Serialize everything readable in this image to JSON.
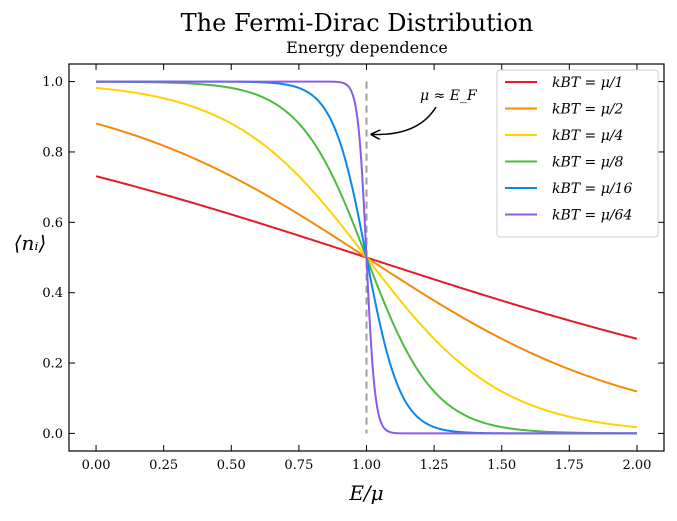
{
  "chart_data": {
    "type": "line",
    "title": "The Fermi-Dirac Distribution",
    "subtitle": "Energy dependence",
    "xlabel": "E/μ",
    "ylabel": "⟨nᵢ⟩",
    "xlim": [
      -0.1,
      2.1
    ],
    "ylim": [
      -0.05,
      1.05
    ],
    "x_ticks": [
      0.0,
      0.25,
      0.5,
      0.75,
      1.0,
      1.25,
      1.5,
      1.75,
      2.0
    ],
    "x_tick_labels": [
      "0.00",
      "0.25",
      "0.50",
      "0.75",
      "1.00",
      "1.25",
      "1.50",
      "1.75",
      "2.00"
    ],
    "y_ticks": [
      0.0,
      0.2,
      0.4,
      0.6,
      0.8,
      1.0
    ],
    "y_tick_labels": [
      "0.0",
      "0.2",
      "0.4",
      "0.6",
      "0.8",
      "1.0"
    ],
    "grid": false,
    "legend_position": "top-right",
    "x_range": [
      0,
      2
    ],
    "series": [
      {
        "name": "kBT = μ/1",
        "kT": 1,
        "color": "#e41a2c",
        "y_at_x0": 0.731,
        "y_at_x1": 0.5,
        "y_at_x2": 0.269
      },
      {
        "name": "kBT = μ/2",
        "kT": 0.5,
        "color": "#f58a07",
        "y_at_x0": 0.881,
        "y_at_x1": 0.5,
        "y_at_x2": 0.119
      },
      {
        "name": "kBT = μ/4",
        "kT": 0.25,
        "color": "#ffd200",
        "y_at_x0": 0.982,
        "y_at_x1": 0.5,
        "y_at_x2": 0.018
      },
      {
        "name": "kBT = μ/8",
        "kT": 0.125,
        "color": "#4dbb3f",
        "y_at_x0": 1.0,
        "y_at_x1": 0.5,
        "y_at_x2": 0.0
      },
      {
        "name": "kBT = μ/16",
        "kT": 0.0625,
        "color": "#0b87e8",
        "y_at_x0": 1.0,
        "y_at_x1": 0.5,
        "y_at_x2": 0.0
      },
      {
        "name": "kBT = μ/64",
        "kT": 0.015625,
        "color": "#8a5ce6",
        "y_at_x0": 1.0,
        "y_at_x1": 0.5,
        "y_at_x2": 0.0
      }
    ],
    "vertical_line": {
      "x": 1.0,
      "style": "dashed",
      "color": "#9e9e9e"
    },
    "annotation": {
      "text": "μ ≈ E_F",
      "points_to": [
        1.0,
        0.85
      ]
    }
  }
}
